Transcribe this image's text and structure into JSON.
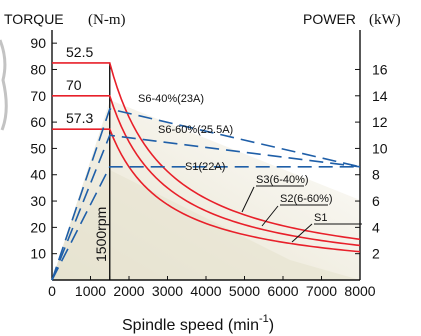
{
  "chart_data": {
    "type": "line",
    "y_left": {
      "title": "TORQUE",
      "unit": "(N-m)",
      "range": [
        0,
        95
      ],
      "ticks": [
        10,
        20,
        30,
        40,
        50,
        60,
        70,
        80,
        90
      ]
    },
    "y_right": {
      "title": "POWER",
      "unit": "(kW)",
      "range": [
        0,
        19
      ],
      "ticks": [
        2,
        4,
        6,
        8,
        10,
        12,
        14,
        16
      ]
    },
    "x_axis": {
      "title": "Spindle speed (min",
      "superscript": "-1",
      "title_end": ")",
      "range": [
        0,
        8000
      ],
      "ticks": [
        0,
        1000,
        1500,
        2000,
        3000,
        4000,
        5000,
        6000,
        7000,
        8000
      ]
    },
    "torque_labels": [
      "52.5",
      "70",
      "57.3"
    ],
    "base_speed_label": "1500rpm",
    "series": [
      {
        "name": "S1",
        "quantity": "torque",
        "points": [
          [
            0,
            57.3
          ],
          [
            1500,
            57.3
          ],
          [
            2000,
            43
          ],
          [
            3000,
            28.7
          ],
          [
            4000,
            21.5
          ],
          [
            5000,
            17.2
          ],
          [
            6000,
            14.3
          ],
          [
            7000,
            12.3
          ],
          [
            8000,
            10.7
          ]
        ]
      },
      {
        "name": "S2(6-60%)",
        "quantity": "torque",
        "points": [
          [
            0,
            70
          ],
          [
            1500,
            70
          ],
          [
            2000,
            52.5
          ],
          [
            3000,
            35
          ],
          [
            4000,
            26.3
          ],
          [
            5000,
            21
          ],
          [
            6000,
            17.5
          ],
          [
            7000,
            15
          ],
          [
            8000,
            13.1
          ]
        ]
      },
      {
        "name": "S3(6-40%)",
        "quantity": "torque",
        "points": [
          [
            0,
            82.5
          ],
          [
            1500,
            82.5
          ],
          [
            2000,
            61.9
          ],
          [
            3000,
            41.3
          ],
          [
            4000,
            30.9
          ],
          [
            5000,
            24.8
          ],
          [
            6000,
            20.6
          ],
          [
            7000,
            17.7
          ],
          [
            8000,
            15.5
          ]
        ]
      },
      {
        "name": "S1(22A)",
        "quantity": "power",
        "points": [
          [
            0,
            0
          ],
          [
            1500,
            8.6
          ],
          [
            8000,
            8.6
          ]
        ]
      },
      {
        "name": "S6-60%(25.5A)",
        "quantity": "power",
        "points": [
          [
            0,
            0
          ],
          [
            1500,
            11
          ],
          [
            8000,
            8.6
          ]
        ]
      },
      {
        "name": "S6-40%(23A)",
        "quantity": "power",
        "points": [
          [
            0,
            0
          ],
          [
            1500,
            13
          ],
          [
            8000,
            8.6
          ]
        ]
      }
    ]
  }
}
